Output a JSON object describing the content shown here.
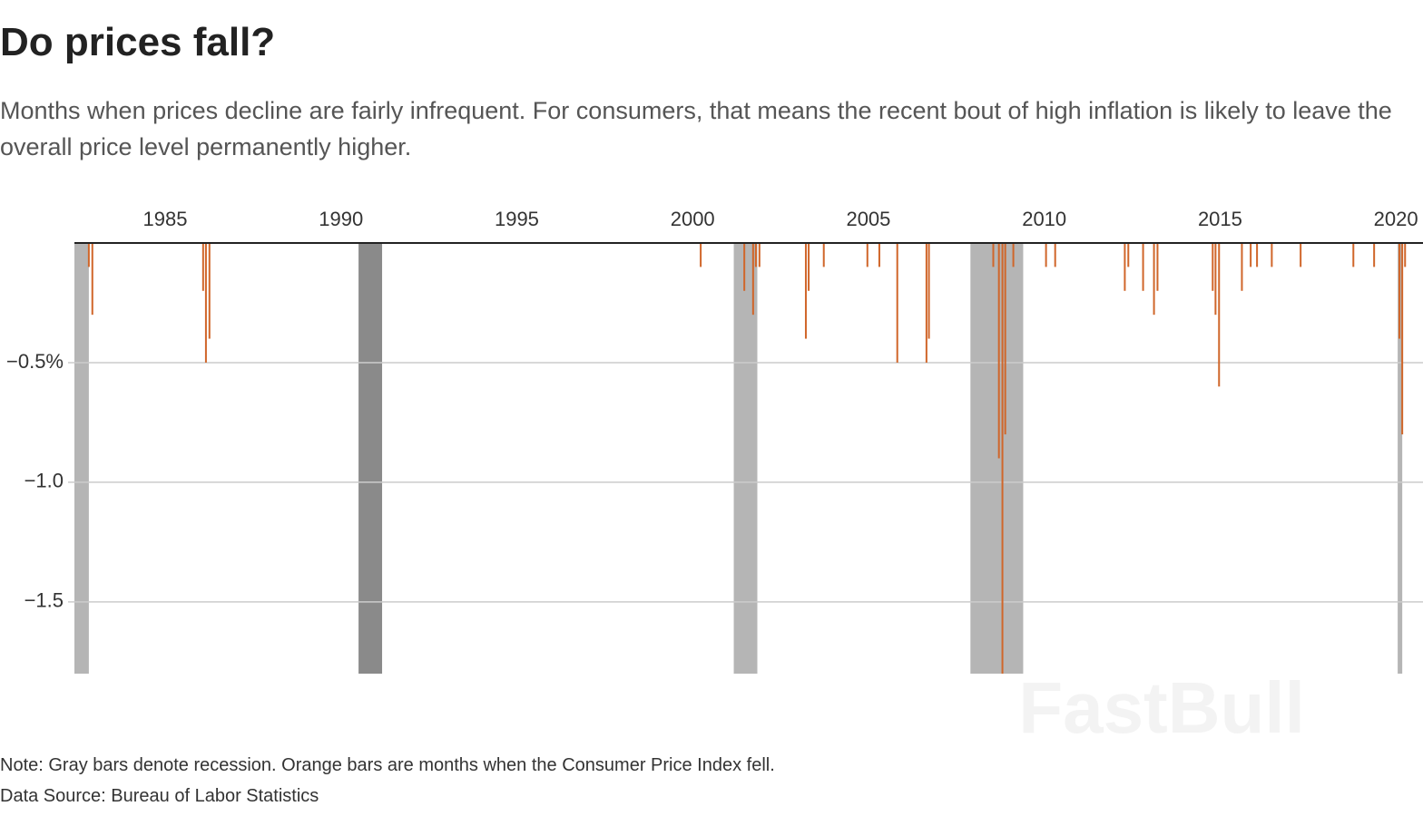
{
  "chart_data": {
    "type": "bar",
    "title": "Do prices fall?",
    "subtitle": "Months when prices decline are fairly infrequent. For consumers, that means the recent bout of high inflation is likely to leave the overall price level permanently higher.",
    "note": "Note: Gray bars denote recession. Orange bars are months when the Consumer Price Index fell.",
    "source": "Data Source: Bureau of Labor Statistics",
    "watermark": "FastBull",
    "x": [
      1982.83,
      1982.93,
      1986.08,
      1986.16,
      1986.26,
      2000.23,
      2001.47,
      2001.72,
      2001.8,
      2001.9,
      2003.22,
      2003.3,
      2003.73,
      2004.97,
      2005.31,
      2005.82,
      2006.65,
      2006.72,
      2008.55,
      2008.71,
      2008.81,
      2008.89,
      2009.12,
      2010.05,
      2010.31,
      2012.29,
      2012.39,
      2012.81,
      2013.12,
      2013.22,
      2014.79,
      2014.87,
      2014.97,
      2015.62,
      2015.87,
      2016.05,
      2016.47,
      2017.29,
      2018.79,
      2019.38,
      2020.1,
      2020.18,
      2020.26
    ],
    "values": [
      -0.1,
      -0.3,
      -0.2,
      -0.5,
      -0.4,
      -0.1,
      -0.2,
      -0.3,
      -0.1,
      -0.1,
      -0.4,
      -0.2,
      -0.1,
      -0.1,
      -0.1,
      -0.5,
      -0.5,
      -0.4,
      -0.1,
      -0.9,
      -1.8,
      -0.8,
      -0.1,
      -0.1,
      -0.1,
      -0.2,
      -0.1,
      -0.2,
      -0.3,
      -0.2,
      -0.2,
      -0.3,
      -0.6,
      -0.2,
      -0.1,
      -0.1,
      -0.1,
      -0.1,
      -0.1,
      -0.1,
      -0.4,
      -0.8,
      -0.1
    ],
    "color": "#d0662a",
    "recessions": [
      {
        "start": 1982.42,
        "end": 1982.83,
        "color": "#b5b5b5"
      },
      {
        "start": 1990.5,
        "end": 1991.17,
        "color": "#8a8a8a"
      },
      {
        "start": 2001.17,
        "end": 2001.84,
        "color": "#b5b5b5"
      },
      {
        "start": 2007.9,
        "end": 2009.4,
        "color": "#b5b5b5"
      },
      {
        "start": 2020.05,
        "end": 2020.18,
        "color": "#b5b5b5"
      }
    ],
    "xlim": [
      1982.42,
      2020.77
    ],
    "xticks": [
      1985,
      1990,
      1995,
      2000,
      2005,
      2010,
      2015,
      2020
    ],
    "ylim": [
      -1.8,
      0
    ],
    "yticks": [
      {
        "value": -0.5,
        "label": "−0.5%"
      },
      {
        "value": -1.0,
        "label": "−1.0"
      },
      {
        "value": -1.5,
        "label": "−1.5"
      }
    ],
    "grid": true
  }
}
